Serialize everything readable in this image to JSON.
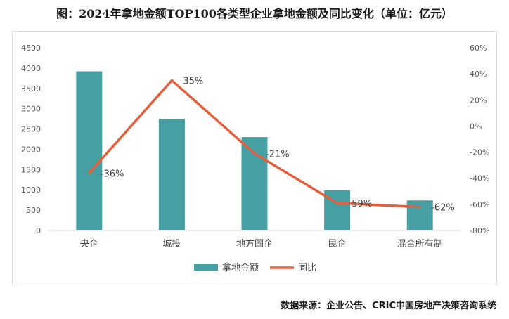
{
  "title": "图：2024年拿地金额TOP100各类型企业拿地金额及同比变化（单位：亿元）",
  "source": "数据来源：企业公告、CRIC中国房地产决策咨询系统",
  "colors": {
    "bar": "#46A0A3",
    "line": "#E2603D",
    "axis": "#d9d9d9"
  },
  "chart_data": {
    "type": "bar",
    "categories": [
      "央企",
      "城投",
      "地方国企",
      "民企",
      "混合所有制"
    ],
    "series": [
      {
        "name": "拿地金额",
        "type": "bar",
        "axis": "left",
        "values": [
          3920,
          2750,
          2300,
          990,
          740
        ]
      },
      {
        "name": "同比",
        "type": "line",
        "axis": "right",
        "values": [
          -36,
          35,
          -21,
          -59,
          -62
        ],
        "labels": [
          "-36%",
          "35%",
          "-21%",
          "-59%",
          "-62%"
        ]
      }
    ],
    "y_left": {
      "ylim": [
        0,
        4500
      ],
      "ticks": [
        "0",
        "500",
        "1000",
        "1500",
        "2000",
        "2500",
        "3000",
        "3500",
        "4000",
        "4500"
      ]
    },
    "y_right": {
      "ylim": [
        -80,
        60
      ],
      "ticks": [
        "-80%",
        "-60%",
        "-40%",
        "-20%",
        "0%",
        "20%",
        "40%",
        "60%"
      ]
    },
    "legend": {
      "position": "bottom",
      "entries": [
        "拿地金额",
        "同比"
      ]
    },
    "grid": false
  }
}
